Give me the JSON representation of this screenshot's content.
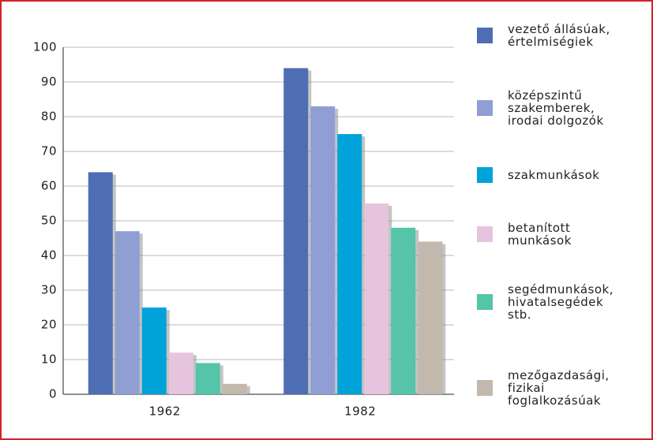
{
  "chart_data": {
    "type": "bar",
    "categories": [
      "1962",
      "1982"
    ],
    "series": [
      {
        "name": "vezető állásúak,\nértelmiségiek",
        "color": "#4f6db3",
        "values": [
          64,
          94
        ]
      },
      {
        "name": "középszintű\nszakemberek,\nirodai dolgozók",
        "color": "#8f9fd4",
        "values": [
          47,
          83
        ]
      },
      {
        "name": "szakmunkások",
        "color": "#00a3d9",
        "values": [
          25,
          75
        ]
      },
      {
        "name": "betanított\nmunkások",
        "color": "#e6c4dd",
        "values": [
          12,
          55
        ]
      },
      {
        "name": "segédmunkások,\nhivatalsegédek\nstb.",
        "color": "#55c4a8",
        "values": [
          9,
          48
        ]
      },
      {
        "name": "mezőgazdasági,\nfizikai\nfoglalkozásúak",
        "color": "#c2b8ad",
        "values": [
          3,
          44
        ]
      }
    ],
    "ylim": [
      0,
      100
    ],
    "yticks": [
      0,
      10,
      20,
      30,
      40,
      50,
      60,
      70,
      80,
      90,
      100
    ],
    "grid": true
  }
}
